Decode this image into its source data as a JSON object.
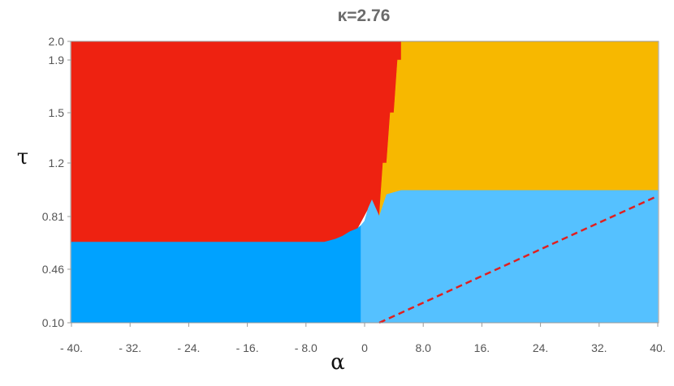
{
  "chart_data": {
    "type": "region-plot",
    "title": "κ=2.76",
    "xlabel": "α",
    "ylabel": "τ",
    "xlim": [
      -40,
      40
    ],
    "x_ticks": [
      {
        "v": -40,
        "label": "- 40."
      },
      {
        "v": -32,
        "label": "- 32."
      },
      {
        "v": -24,
        "label": "- 24."
      },
      {
        "v": -16,
        "label": "- 16."
      },
      {
        "v": -8,
        "label": "- 8.0"
      },
      {
        "v": 0,
        "label": "0"
      },
      {
        "v": 8,
        "label": "8.0"
      },
      {
        "v": 16,
        "label": "16."
      },
      {
        "v": 24,
        "label": "24."
      },
      {
        "v": 32,
        "label": "32."
      },
      {
        "v": 40,
        "label": "40."
      }
    ],
    "y_ticks": [
      "0.10",
      "0.46",
      "0.81",
      "1.2",
      "1.5",
      "1.9",
      "2.0"
    ],
    "y_extent": [
      "0.10",
      "2.0"
    ],
    "regions": [
      {
        "name": "red-region",
        "color": "#ee2211",
        "polygon": [
          [
            -40,
            "2.0"
          ],
          [
            5,
            "2.0"
          ],
          [
            5,
            "1.9"
          ],
          [
            4.5,
            "1.9"
          ],
          [
            4,
            "1.5"
          ],
          [
            3.5,
            "1.5"
          ],
          [
            3,
            "1.2"
          ],
          [
            2.5,
            "1.2"
          ],
          [
            2,
            "0.81"
          ],
          [
            1.5,
            "0.81"
          ],
          [
            1,
            0.93
          ],
          [
            0.5,
            0.87
          ],
          [
            -1,
            0.73
          ],
          [
            -2,
            0.71
          ],
          [
            -3,
            0.68
          ],
          [
            -4,
            0.66
          ],
          [
            -5.5,
            0.64
          ],
          [
            -40,
            0.64
          ]
        ]
      },
      {
        "name": "orange-region",
        "color": "#f7b800",
        "polygon": [
          [
            5,
            "2.0"
          ],
          [
            40,
            "2.0"
          ],
          [
            40,
            1.0
          ],
          [
            5,
            1.0
          ],
          [
            3,
            0.97
          ],
          [
            2,
            "0.81"
          ],
          [
            2.5,
            "1.2"
          ],
          [
            3,
            "1.2"
          ],
          [
            3.5,
            "1.5"
          ],
          [
            4,
            "1.5"
          ],
          [
            4.5,
            "1.9"
          ],
          [
            5,
            "1.9"
          ]
        ]
      },
      {
        "name": "dark-blue-region",
        "color": "#00a2ff",
        "polygon": [
          [
            -40,
            0.64
          ],
          [
            -5.5,
            0.64
          ],
          [
            -4,
            0.66
          ],
          [
            -3,
            0.68
          ],
          [
            -2,
            0.71
          ],
          [
            -1,
            0.73
          ],
          [
            -0.5,
            0.75
          ],
          [
            -0.5,
            "0.10"
          ],
          [
            -40,
            "0.10"
          ]
        ]
      },
      {
        "name": "light-blue-region",
        "color": "#55c1ff",
        "polygon": [
          [
            -0.5,
            "0.10"
          ],
          [
            40,
            "0.10"
          ],
          [
            40,
            1.0
          ],
          [
            5,
            1.0
          ],
          [
            3,
            0.97
          ],
          [
            2,
            "0.81"
          ],
          [
            1,
            0.93
          ],
          [
            0.5,
            0.87
          ],
          [
            0,
            0.78
          ],
          [
            -0.5,
            0.75
          ]
        ]
      }
    ],
    "dashed_line": {
      "color": "#e02020",
      "points": [
        [
          2,
          "0.10"
        ],
        [
          40,
          0.96
        ]
      ]
    }
  }
}
